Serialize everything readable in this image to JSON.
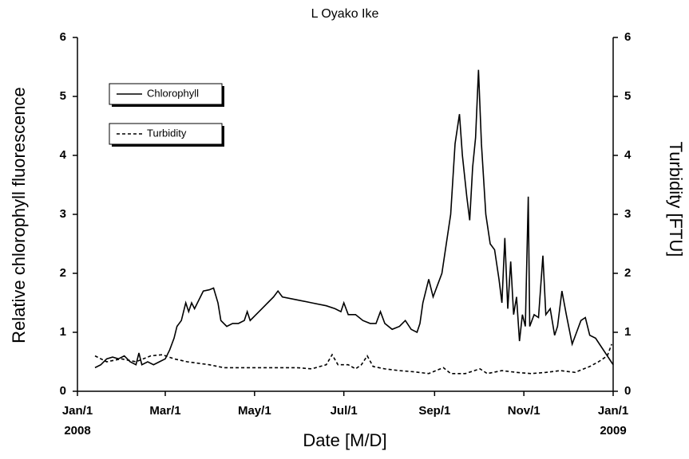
{
  "chart_data": {
    "type": "line",
    "title": "L Oyako Ike",
    "x_label": "Date [M/D]",
    "y_label": "Relative chlorophyll fluorescence",
    "y2_label": "Turbidity [FTU]",
    "annotations": [
      "2008",
      "2009"
    ],
    "xlim": [
      0,
      366
    ],
    "xticks": [
      {
        "value": 0,
        "label": "Jan/1"
      },
      {
        "value": 60,
        "label": "Mar/1"
      },
      {
        "value": 121,
        "label": "May/1"
      },
      {
        "value": 182,
        "label": "Jul/1"
      },
      {
        "value": 244,
        "label": "Sep/1"
      },
      {
        "value": 305,
        "label": "Nov/1"
      },
      {
        "value": 366,
        "label": "Jan/1"
      }
    ],
    "ylim": [
      0,
      6
    ],
    "yticks": [
      0,
      1,
      2,
      3,
      4,
      5,
      6
    ],
    "y2lim": [
      0,
      6
    ],
    "y2ticks": [
      0,
      1,
      2,
      3,
      4,
      5,
      6
    ],
    "legend": "upper left",
    "series": [
      {
        "name": "Chlorophyll",
        "color": "#000000",
        "dash": false,
        "x": [
          12,
          16,
          20,
          24,
          28,
          32,
          36,
          40,
          42,
          44,
          48,
          52,
          56,
          60,
          63,
          66,
          68,
          71,
          74,
          76,
          78,
          80,
          84,
          86,
          90,
          93,
          96,
          98,
          102,
          106,
          110,
          114,
          116,
          118,
          122,
          126,
          130,
          134,
          137,
          140,
          150,
          160,
          170,
          176,
          180,
          182,
          185,
          190,
          195,
          200,
          204,
          207,
          210,
          215,
          220,
          224,
          228,
          232,
          234,
          236,
          240,
          243,
          246,
          249,
          252,
          255,
          258,
          261,
          263,
          266,
          268,
          270,
          272,
          274,
          276,
          279,
          282,
          285,
          288,
          290,
          292,
          294,
          296,
          298,
          300,
          302,
          304,
          306,
          308,
          309,
          312,
          315,
          318,
          320,
          323,
          326,
          328,
          331,
          334,
          338,
          341,
          344,
          347,
          350,
          354,
          358,
          362,
          366
        ],
        "values": [
          0.4,
          0.45,
          0.55,
          0.58,
          0.55,
          0.6,
          0.5,
          0.45,
          0.65,
          0.45,
          0.5,
          0.45,
          0.5,
          0.55,
          0.7,
          0.9,
          1.1,
          1.2,
          1.5,
          1.35,
          1.5,
          1.4,
          1.6,
          1.7,
          1.72,
          1.75,
          1.5,
          1.2,
          1.1,
          1.15,
          1.15,
          1.2,
          1.35,
          1.2,
          1.3,
          1.4,
          1.5,
          1.6,
          1.7,
          1.6,
          1.55,
          1.5,
          1.45,
          1.4,
          1.35,
          1.5,
          1.3,
          1.3,
          1.2,
          1.15,
          1.15,
          1.35,
          1.15,
          1.05,
          1.1,
          1.2,
          1.05,
          1.0,
          1.15,
          1.5,
          1.9,
          1.6,
          1.8,
          2.0,
          2.5,
          3.0,
          4.2,
          4.7,
          4.0,
          3.3,
          2.9,
          3.8,
          4.3,
          5.45,
          4.2,
          3.0,
          2.5,
          2.4,
          1.9,
          1.5,
          2.6,
          1.4,
          2.2,
          1.3,
          1.6,
          0.85,
          1.3,
          1.1,
          3.3,
          1.1,
          1.3,
          1.25,
          2.3,
          1.3,
          1.4,
          0.95,
          1.1,
          1.7,
          1.3,
          0.8,
          1.0,
          1.2,
          1.25,
          0.95,
          0.9,
          0.75,
          0.6,
          0.45
        ]
      },
      {
        "name": "Turbidity",
        "color": "#000000",
        "dash": true,
        "axis": "y2",
        "x": [
          12,
          20,
          30,
          40,
          50,
          58,
          66,
          75,
          90,
          100,
          120,
          140,
          150,
          160,
          170,
          174,
          178,
          185,
          190,
          194,
          198,
          202,
          210,
          220,
          230,
          240,
          250,
          255,
          265,
          275,
          280,
          290,
          300,
          310,
          320,
          330,
          340,
          350,
          356,
          362,
          365
        ],
        "values": [
          0.6,
          0.5,
          0.55,
          0.5,
          0.6,
          0.62,
          0.55,
          0.5,
          0.45,
          0.4,
          0.4,
          0.4,
          0.4,
          0.38,
          0.45,
          0.62,
          0.45,
          0.45,
          0.38,
          0.45,
          0.6,
          0.42,
          0.38,
          0.35,
          0.33,
          0.3,
          0.4,
          0.3,
          0.3,
          0.38,
          0.3,
          0.35,
          0.32,
          0.3,
          0.32,
          0.35,
          0.32,
          0.42,
          0.5,
          0.6,
          0.8
        ]
      }
    ]
  }
}
